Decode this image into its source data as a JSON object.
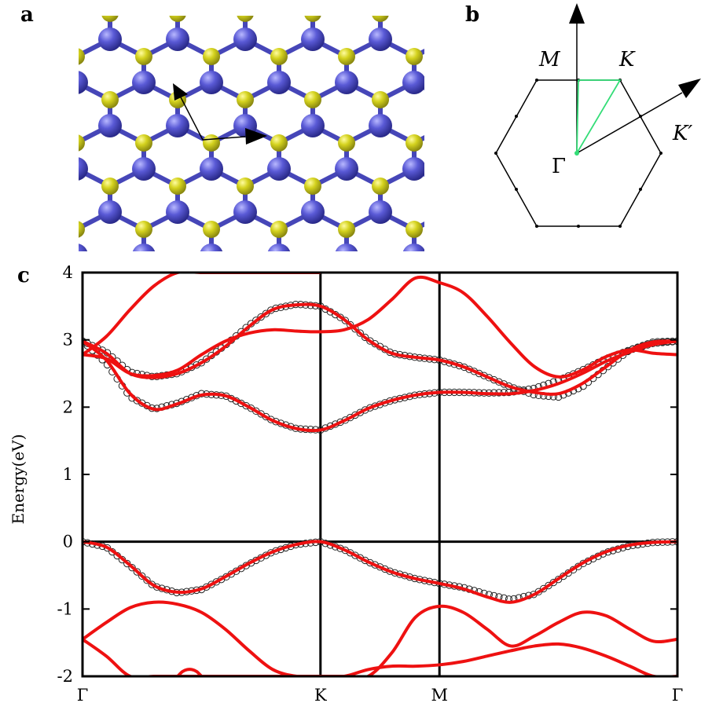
{
  "panels": {
    "a": "a",
    "b": "b",
    "c": "c"
  },
  "lattice": {
    "colors": {
      "metal": "#5a5ad6",
      "chalcogen": "#d4d21e",
      "bond_metal": "#4646b8",
      "bond_chalcogen": "#c8c818"
    }
  },
  "brillouin_zone": {
    "labels": {
      "M": "M",
      "K": "K",
      "Kprime": "K′",
      "Gamma": "Γ"
    },
    "path_color": "#33dd77"
  },
  "chart_data": {
    "type": "line",
    "title": "",
    "xlabel": "",
    "ylabel": "Energy(eV)",
    "ylim": [
      -2,
      4
    ],
    "yticks": [
      "4",
      "3",
      "2",
      "1",
      "0",
      "-1",
      "-2"
    ],
    "xtick_labels": [
      "Γ",
      "K",
      "M",
      "Γ"
    ],
    "x_path": [
      0,
      1,
      1.5,
      2.5
    ],
    "grid": false,
    "series": [
      {
        "style": "red-line",
        "color": "#ee1111",
        "bands": [
          {
            "x": [
              0,
              0.1,
              0.2,
              0.3,
              0.4,
              0.5,
              0.6,
              0.7,
              0.8,
              0.9,
              1.0,
              1.1,
              1.2,
              1.3,
              1.4,
              1.5,
              1.6,
              1.7,
              1.8,
              1.9,
              2.0,
              2.1,
              2.2,
              2.3,
              2.4,
              2.5
            ],
            "y": [
              0.0,
              -0.08,
              -0.35,
              -0.65,
              -0.75,
              -0.7,
              -0.52,
              -0.32,
              -0.15,
              -0.04,
              0.0,
              -0.12,
              -0.3,
              -0.45,
              -0.55,
              -0.62,
              -0.7,
              -0.82,
              -0.9,
              -0.78,
              -0.55,
              -0.32,
              -0.15,
              -0.05,
              -0.01,
              0.0
            ]
          },
          {
            "x": [
              0,
              0.1,
              0.2,
              0.3,
              0.4,
              0.5,
              0.6,
              0.7,
              0.8,
              0.9,
              1.0,
              1.1,
              1.2,
              1.3,
              1.4,
              1.5,
              1.6,
              1.7,
              1.8,
              1.9,
              2.0,
              2.1,
              2.2,
              2.3,
              2.4,
              2.5
            ],
            "y": [
              2.98,
              2.7,
              2.2,
              1.97,
              2.05,
              2.18,
              2.17,
              2.0,
              1.8,
              1.68,
              1.66,
              1.8,
              1.98,
              2.1,
              2.18,
              2.22,
              2.22,
              2.2,
              2.2,
              2.25,
              2.35,
              2.5,
              2.68,
              2.82,
              2.93,
              2.98
            ]
          },
          {
            "x": [
              0,
              0.1,
              0.2,
              0.3,
              0.4,
              0.5,
              0.6,
              0.7,
              0.8,
              0.9,
              1.0,
              1.1,
              1.2,
              1.3,
              1.4,
              1.5,
              1.6,
              1.7,
              1.8,
              1.9,
              2.0,
              2.1,
              2.2,
              2.3,
              2.4,
              2.5
            ],
            "y": [
              2.98,
              2.8,
              2.5,
              2.44,
              2.5,
              2.66,
              2.9,
              3.2,
              3.45,
              3.52,
              3.5,
              3.3,
              3.0,
              2.8,
              2.74,
              2.7,
              2.6,
              2.45,
              2.3,
              2.22,
              2.2,
              2.35,
              2.6,
              2.85,
              2.97,
              2.98
            ]
          },
          {
            "x": [
              0,
              0.1,
              0.2,
              0.3,
              0.4,
              0.5,
              0.6,
              0.7,
              0.8,
              0.9,
              1.0,
              1.1,
              1.2,
              1.3,
              1.4,
              1.5,
              1.6,
              1.7,
              1.8,
              1.9,
              2.0,
              2.1,
              2.2,
              2.3,
              2.4,
              2.5
            ],
            "y": [
              2.78,
              2.72,
              2.5,
              2.47,
              2.55,
              2.78,
              2.98,
              3.1,
              3.15,
              3.13,
              3.12,
              3.15,
              3.3,
              3.6,
              3.92,
              3.85,
              3.7,
              3.35,
              2.95,
              2.6,
              2.45,
              2.55,
              2.75,
              2.85,
              2.8,
              2.78
            ]
          },
          {
            "x": [
              0,
              0.1,
              0.2,
              0.3,
              0.4,
              0.5,
              0.6,
              0.7,
              0.8,
              0.9,
              1.0
            ],
            "y": [
              2.78,
              3.05,
              3.45,
              3.8,
              4.0,
              4.0,
              4.0,
              4.0,
              4.0,
              4.0,
              4.0
            ]
          },
          {
            "x": [
              0,
              0.1,
              0.2,
              0.3,
              0.4,
              0.5,
              0.6,
              0.7,
              0.8,
              0.9,
              1.0,
              1.1,
              1.2,
              1.3,
              1.4,
              1.5,
              1.6,
              1.7,
              1.8,
              1.9,
              2.0,
              2.1,
              2.2,
              2.3,
              2.4,
              2.5
            ],
            "y": [
              -1.45,
              -1.2,
              -0.98,
              -0.9,
              -0.93,
              -1.05,
              -1.3,
              -1.62,
              -1.9,
              -2.0,
              -2.0,
              -2.0,
              -2.0,
              -1.65,
              -1.12,
              -0.96,
              -1.05,
              -1.3,
              -1.55,
              -1.4,
              -1.2,
              -1.05,
              -1.1,
              -1.3,
              -1.48,
              -1.45
            ]
          },
          {
            "x": [
              0,
              0.1,
              0.2,
              0.3,
              0.4,
              0.5,
              0.6,
              0.7,
              0.8,
              0.9,
              1.0,
              1.1,
              1.2,
              1.3,
              1.4,
              1.5,
              1.6,
              1.7,
              1.8,
              1.9,
              2.0,
              2.1,
              2.2,
              2.3,
              2.4,
              2.5
            ],
            "y": [
              -1.45,
              -1.7,
              -2.0,
              -2.0,
              -2.0,
              -2.0,
              -2.0,
              -2.0,
              -2.0,
              -2.0,
              -2.0,
              -2.0,
              -1.9,
              -1.85,
              -1.85,
              -1.83,
              -1.78,
              -1.7,
              -1.62,
              -1.55,
              -1.52,
              -1.58,
              -1.7,
              -1.85,
              -2.0,
              -2.0
            ]
          },
          {
            "x": [
              0.4,
              0.42,
              0.44,
              0.46,
              0.48,
              0.5
            ],
            "y": [
              -2.0,
              -1.93,
              -1.9,
              -1.9,
              -1.93,
              -2.0
            ]
          }
        ]
      },
      {
        "style": "black-circles",
        "color": "#222222",
        "bands": [
          {
            "x": [
              0,
              0.1,
              0.2,
              0.3,
              0.4,
              0.5,
              0.6,
              0.7,
              0.8,
              0.9,
              1.0,
              1.1,
              1.2,
              1.3,
              1.4,
              1.5,
              1.6,
              1.7,
              1.8,
              1.9,
              2.0,
              2.1,
              2.2,
              2.3,
              2.4,
              2.5
            ],
            "y": [
              0.0,
              -0.08,
              -0.36,
              -0.66,
              -0.76,
              -0.71,
              -0.53,
              -0.33,
              -0.15,
              -0.04,
              0.0,
              -0.12,
              -0.3,
              -0.45,
              -0.55,
              -0.62,
              -0.68,
              -0.78,
              -0.86,
              -0.78,
              -0.56,
              -0.33,
              -0.16,
              -0.06,
              -0.01,
              0.0
            ]
          },
          {
            "x": [
              0,
              0.1,
              0.2,
              0.3,
              0.4,
              0.5,
              0.6,
              0.7,
              0.8,
              0.9,
              1.0,
              1.1,
              1.2,
              1.3,
              1.4,
              1.5,
              1.6,
              1.7,
              1.8,
              1.9,
              2.0,
              2.1,
              2.2,
              2.3,
              2.4,
              2.5
            ],
            "y": [
              2.98,
              2.65,
              2.15,
              1.97,
              2.06,
              2.2,
              2.17,
              2.0,
              1.8,
              1.68,
              1.66,
              1.8,
              1.98,
              2.1,
              2.18,
              2.22,
              2.22,
              2.21,
              2.22,
              2.28,
              2.4,
              2.55,
              2.72,
              2.85,
              2.95,
              2.98
            ]
          },
          {
            "x": [
              0,
              0.1,
              0.2,
              0.3,
              0.4,
              0.5,
              0.6,
              0.7,
              0.8,
              0.9,
              1.0,
              1.1,
              1.2,
              1.3,
              1.4,
              1.5,
              1.6,
              1.7,
              1.8,
              1.9,
              2.0,
              2.1,
              2.2,
              2.3,
              2.4,
              2.5
            ],
            "y": [
              2.98,
              2.82,
              2.52,
              2.45,
              2.5,
              2.66,
              2.92,
              3.22,
              3.46,
              3.53,
              3.5,
              3.3,
              3.0,
              2.8,
              2.74,
              2.7,
              2.6,
              2.45,
              2.3,
              2.18,
              2.15,
              2.3,
              2.58,
              2.85,
              2.97,
              2.98
            ]
          }
        ]
      }
    ]
  }
}
